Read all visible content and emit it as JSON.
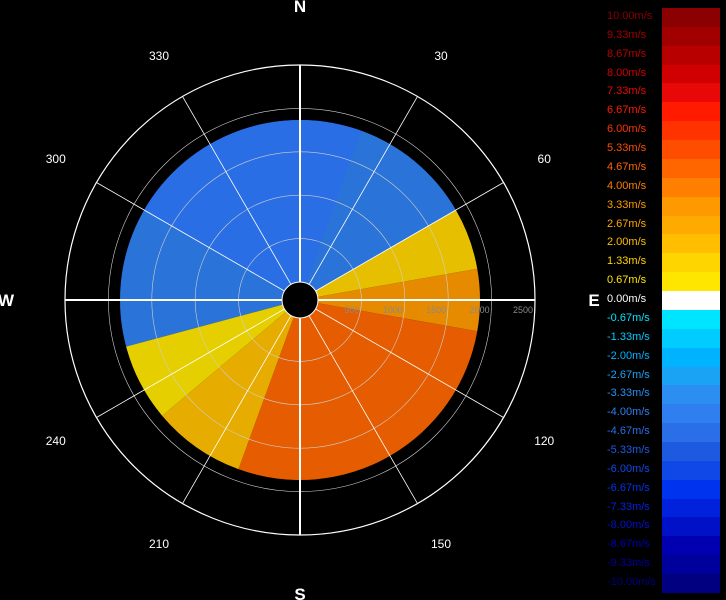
{
  "chart_data": {
    "type": "polar",
    "cardinals": [
      "N",
      "E",
      "S",
      "W"
    ],
    "degree_labels": [
      "30",
      "60",
      "120",
      "150",
      "210",
      "240",
      "300",
      "330"
    ],
    "range_rings": [
      500,
      1000,
      1500,
      2000,
      2500
    ],
    "range_max": 2500,
    "legend": [
      {
        "label": "10.00m/s",
        "color": "#8b0000"
      },
      {
        "label": "9.33m/s",
        "color": "#a00000"
      },
      {
        "label": "8.67m/s",
        "color": "#b80000"
      },
      {
        "label": "8.00m/s",
        "color": "#d00000"
      },
      {
        "label": "7.33m/s",
        "color": "#e80808"
      },
      {
        "label": "6.67m/s",
        "color": "#ff1a00"
      },
      {
        "label": "6.00m/s",
        "color": "#ff3300"
      },
      {
        "label": "5.33m/s",
        "color": "#ff4d00"
      },
      {
        "label": "4.67m/s",
        "color": "#ff6600"
      },
      {
        "label": "4.00m/s",
        "color": "#ff7f00"
      },
      {
        "label": "3.33m/s",
        "color": "#ff9900"
      },
      {
        "label": "2.67m/s",
        "color": "#ffaa00"
      },
      {
        "label": "2.00m/s",
        "color": "#ffbf00"
      },
      {
        "label": "1.33m/s",
        "color": "#ffd500"
      },
      {
        "label": "0.67m/s",
        "color": "#ffe600"
      },
      {
        "label": "0.00m/s",
        "color": "#ffffff"
      },
      {
        "label": "-0.67m/s",
        "color": "#00e5ff"
      },
      {
        "label": "-1.33m/s",
        "color": "#00ccff"
      },
      {
        "label": "-2.00m/s",
        "color": "#00b3ff"
      },
      {
        "label": "-2.67m/s",
        "color": "#1aa3f5"
      },
      {
        "label": "-3.33m/s",
        "color": "#2b8ef0"
      },
      {
        "label": "-4.00m/s",
        "color": "#2f7ff0"
      },
      {
        "label": "-4.67m/s",
        "color": "#2a6ee8"
      },
      {
        "label": "-5.33m/s",
        "color": "#1e5ae0"
      },
      {
        "label": "-6.00m/s",
        "color": "#1048e8"
      },
      {
        "label": "-6.67m/s",
        "color": "#0033ee"
      },
      {
        "label": "-7.33m/s",
        "color": "#0022dd"
      },
      {
        "label": "-8.00m/s",
        "color": "#0011c8"
      },
      {
        "label": "-8.67m/s",
        "color": "#0000b0"
      },
      {
        "label": "-9.33m/s",
        "color": "#00009a"
      },
      {
        "label": "-10.00m/s",
        "color": "#000080"
      }
    ],
    "sectors": [
      {
        "from": -105,
        "to": 60,
        "velocity": -4.0
      },
      {
        "from": -60,
        "to": 20,
        "velocity": -5.0
      },
      {
        "from": 60,
        "to": 80,
        "velocity": 1.5
      },
      {
        "from": 80,
        "to": 100,
        "velocity": 3.0
      },
      {
        "from": 100,
        "to": 200,
        "velocity": 4.5
      },
      {
        "from": 200,
        "to": 230,
        "velocity": 2.2
      },
      {
        "from": 230,
        "to": 255,
        "velocity": 1.0
      }
    ]
  }
}
